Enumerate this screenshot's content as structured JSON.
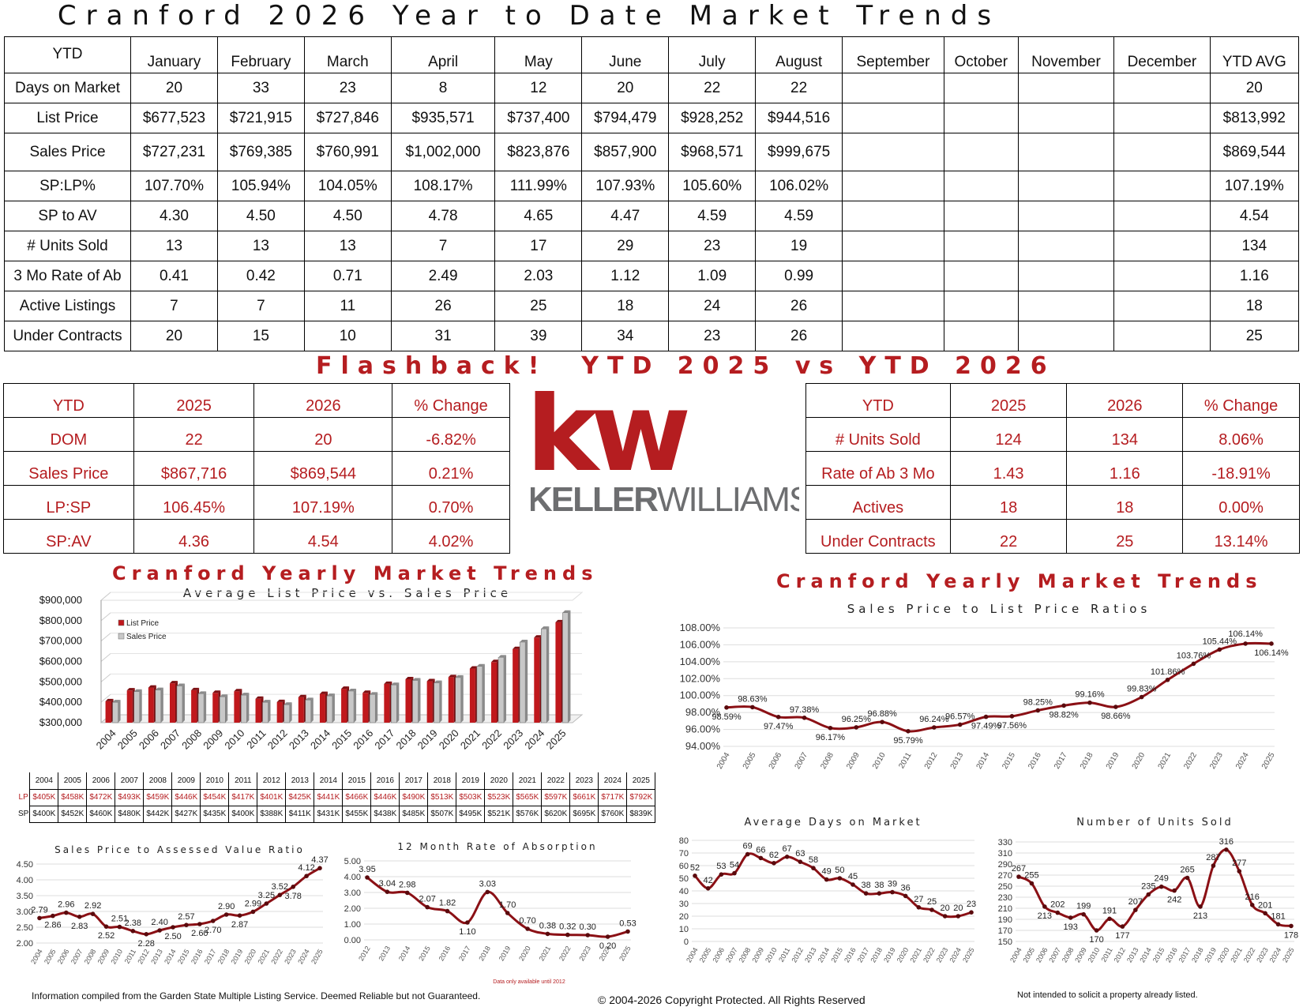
{
  "title": "Cranford 2026 Year to Date Market Trends",
  "main_table": {
    "corner": "YTD",
    "months": [
      "January",
      "February",
      "March",
      "April",
      "May",
      "June",
      "July",
      "August",
      "September",
      "October",
      "November",
      "December",
      "YTD AVG"
    ],
    "rows": [
      {
        "label": "Days on Market",
        "values": [
          "20",
          "33",
          "23",
          "8",
          "12",
          "20",
          "22",
          "22",
          "",
          "",
          "",
          "",
          "20"
        ]
      },
      {
        "label": "List Price",
        "values": [
          "$677,523",
          "$721,915",
          "$727,846",
          "$935,571",
          "$737,400",
          "$794,479",
          "$928,252",
          "$944,516",
          "",
          "",
          "",
          "",
          "$813,992"
        ]
      },
      {
        "label": "Sales Price",
        "values": [
          "$727,231",
          "$769,385",
          "$760,991",
          "$1,002,000",
          "$823,876",
          "$857,900",
          "$968,571",
          "$999,675",
          "",
          "",
          "",
          "",
          "$869,544"
        ]
      },
      {
        "label": "SP:LP%",
        "values": [
          "107.70%",
          "105.94%",
          "104.05%",
          "108.17%",
          "111.99%",
          "107.93%",
          "105.60%",
          "106.02%",
          "",
          "",
          "",
          "",
          "107.19%"
        ]
      },
      {
        "label": "SP to AV",
        "values": [
          "4.30",
          "4.50",
          "4.50",
          "4.78",
          "4.65",
          "4.47",
          "4.59",
          "4.59",
          "",
          "",
          "",
          "",
          "4.54"
        ]
      },
      {
        "label": "# Units Sold",
        "values": [
          "13",
          "13",
          "13",
          "7",
          "17",
          "29",
          "23",
          "19",
          "",
          "",
          "",
          "",
          "134"
        ]
      },
      {
        "label": "3 Mo Rate of Ab",
        "values": [
          "0.41",
          "0.42",
          "0.71",
          "2.49",
          "2.03",
          "1.12",
          "1.09",
          "0.99",
          "",
          "",
          "",
          "",
          "1.16"
        ]
      },
      {
        "label": "Active Listings",
        "values": [
          "7",
          "7",
          "11",
          "26",
          "25",
          "18",
          "24",
          "26",
          "",
          "",
          "",
          "",
          "18"
        ]
      },
      {
        "label": "Under Contracts",
        "values": [
          "20",
          "15",
          "10",
          "31",
          "39",
          "34",
          "23",
          "26",
          "",
          "",
          "",
          "",
          "25"
        ]
      }
    ]
  },
  "flashback_title": "Flashback!  YTD 2025 vs YTD 2026",
  "compare_left": {
    "header": [
      "YTD",
      "2025",
      "2026",
      "% Change"
    ],
    "rows": [
      [
        "DOM",
        "22",
        "20",
        "-6.82%"
      ],
      [
        "Sales Price",
        "$867,716",
        "$869,544",
        "0.21%"
      ],
      [
        "LP:SP",
        "106.45%",
        "107.19%",
        "0.70%"
      ],
      [
        "SP:AV",
        "4.36",
        "4.54",
        "4.02%"
      ]
    ]
  },
  "compare_right": {
    "header": [
      "YTD",
      "2025",
      "2026",
      "% Change"
    ],
    "rows": [
      [
        "# Units Sold",
        "124",
        "134",
        "8.06%"
      ],
      [
        "Rate of Ab 3 Mo",
        "1.43",
        "1.16",
        "-18.91%"
      ],
      [
        "Actives",
        "18",
        "18",
        "0.00%"
      ],
      [
        "Under Contracts",
        "22",
        "25",
        "13.14%"
      ]
    ]
  },
  "logo": {
    "kw": "kw",
    "name_bold": "KELLER",
    "name_light": "WILLIAMS",
    "mark": "®",
    "colors": {
      "red": "#b51d20",
      "gray": "#6d6e70"
    }
  },
  "section_left_title": "Cranford Yearly Market Trends",
  "section_right_title": "Cranford Yearly Market Trends",
  "lpsp_table": {
    "years": [
      "2004",
      "2005",
      "2006",
      "2007",
      "2008",
      "2009",
      "2010",
      "2011",
      "2012",
      "2013",
      "2014",
      "2015",
      "2016",
      "2017",
      "2018",
      "2019",
      "2020",
      "2021",
      "2022",
      "2023",
      "2024",
      "2025"
    ],
    "lp_label": "LP",
    "sp_label": "SP",
    "lp": [
      "$405K",
      "$458K",
      "$472K",
      "$493K",
      "$459K",
      "$446K",
      "$454K",
      "$417K",
      "$401K",
      "$425K",
      "$441K",
      "$466K",
      "$446K",
      "$490K",
      "$513K",
      "$503K",
      "$523K",
      "$565K",
      "$597K",
      "$661K",
      "$717K",
      "$792K"
    ],
    "sp": [
      "$400K",
      "$452K",
      "$460K",
      "$480K",
      "$442K",
      "$427K",
      "$435K",
      "$400K",
      "$388K",
      "$411K",
      "$431K",
      "$455K",
      "$438K",
      "$485K",
      "$507K",
      "$495K",
      "$521K",
      "$576K",
      "$620K",
      "$695K",
      "$760K",
      "$839K"
    ]
  },
  "footer": {
    "left": "Information compiled from the Garden State Multiple Listing Service.  Deemed Reliable but not Guaranteed.",
    "center": "© 2004-2026 Copyright Protected.  All Rights Reserved",
    "right": "Not intended to solicit a property already listed."
  },
  "chart_data": [
    {
      "type": "bar",
      "title": "Average List Price vs. Sales Price",
      "categories": [
        "2004",
        "2005",
        "2006",
        "2007",
        "2008",
        "2009",
        "2010",
        "2011",
        "2012",
        "2013",
        "2014",
        "2015",
        "2016",
        "2017",
        "2018",
        "2019",
        "2020",
        "2021",
        "2022",
        "2023",
        "2024",
        "2025"
      ],
      "series": [
        {
          "name": "List Price",
          "color": "#c0181c",
          "values": [
            405000,
            458000,
            472000,
            493000,
            459000,
            446000,
            454000,
            417000,
            401000,
            425000,
            441000,
            466000,
            446000,
            490000,
            513000,
            503000,
            523000,
            565000,
            597000,
            661000,
            717000,
            792000
          ]
        },
        {
          "name": "Sales Price",
          "color": "#c8c8c8",
          "values": [
            400000,
            452000,
            460000,
            480000,
            442000,
            427000,
            435000,
            400000,
            388000,
            411000,
            431000,
            455000,
            438000,
            485000,
            507000,
            495000,
            521000,
            576000,
            620000,
            695000,
            760000,
            839000
          ]
        }
      ],
      "yticks": [
        "$300,000",
        "$400,000",
        "$500,000",
        "$600,000",
        "$700,000",
        "$800,000",
        "$900,000"
      ],
      "ylim": [
        300000,
        900000
      ],
      "legend": "top-left"
    },
    {
      "type": "line",
      "title": "Sales Price to List Price Ratios",
      "x": [
        "2004",
        "2005",
        "2006",
        "2007",
        "2008",
        "2009",
        "2010",
        "2011",
        "2012",
        "2013",
        "2014",
        "2015",
        "2016",
        "2017",
        "2018",
        "2019",
        "2020",
        "2021",
        "2022",
        "2023",
        "2024",
        "2025"
      ],
      "values": [
        98.59,
        98.63,
        97.47,
        97.38,
        96.17,
        96.25,
        96.88,
        95.79,
        96.24,
        96.57,
        97.49,
        97.56,
        98.25,
        98.82,
        99.16,
        98.66,
        99.83,
        101.86,
        103.76,
        105.44,
        106.14,
        106.14
      ],
      "labels": [
        "98.59%",
        "98.63%",
        "97.47%",
        "97.38%",
        "96.17%",
        "96.25%",
        "96.88%",
        "95.79%",
        "96.24%",
        "96.57%",
        "97.49%",
        "97.56%",
        "98.25%",
        "98.82%",
        "99.16%",
        "98.66%",
        "99.83%",
        "101.86%",
        "103.76%",
        "105.44%",
        "106.14%",
        "106.14%"
      ],
      "yticks": [
        "94.00%",
        "96.00%",
        "98.00%",
        "100.00%",
        "102.00%",
        "104.00%",
        "106.00%",
        "108.00%"
      ],
      "ylim": [
        94,
        108
      ]
    },
    {
      "type": "line",
      "title": "Sales Price to Assessed Value Ratio",
      "x": [
        "2004",
        "2005",
        "2006",
        "2007",
        "2008",
        "2009",
        "2010",
        "2011",
        "2012",
        "2013",
        "2014",
        "2015",
        "2016",
        "2017",
        "2018",
        "2019",
        "2020",
        "2021",
        "2022",
        "2023",
        "2024",
        "2025"
      ],
      "values": [
        2.79,
        2.86,
        2.96,
        2.83,
        2.92,
        2.52,
        2.51,
        2.38,
        2.28,
        2.4,
        2.5,
        2.57,
        2.6,
        2.7,
        2.9,
        2.87,
        2.99,
        3.25,
        3.52,
        3.78,
        4.12,
        4.37
      ],
      "labels": [
        "2.79",
        "2.86",
        "2.96",
        "2.83",
        "2.92",
        "2.52",
        "2.51",
        "2.38",
        "2.28",
        "2.40",
        "2.50",
        "2.57",
        "2.60",
        "2.70",
        "2.90",
        "2.87",
        "2.99",
        "3.25",
        "3.52",
        "3.78",
        "4.12",
        "4.37"
      ],
      "yticks": [
        "2.00",
        "2.50",
        "3.00",
        "3.50",
        "4.00",
        "4.50"
      ],
      "ylim": [
        2,
        4.5
      ]
    },
    {
      "type": "line",
      "title": "12 Month Rate of Absorption",
      "x": [
        "2012",
        "2013",
        "2014",
        "2015",
        "2016",
        "2017",
        "2018",
        "2019",
        "2020",
        "2021",
        "2022",
        "2023",
        "2024",
        "2025"
      ],
      "values": [
        3.95,
        3.04,
        2.98,
        2.07,
        1.82,
        1.1,
        3.03,
        1.7,
        0.7,
        0.38,
        0.32,
        0.3,
        0.2,
        0.53
      ],
      "labels": [
        "3.95",
        "3.04",
        "2.98",
        "2.07",
        "1.82",
        "1.10",
        "3.03",
        "1.70",
        "0.70",
        "0.38",
        "0.32",
        "0.30",
        "0.20",
        "0.53"
      ],
      "yticks": [
        "0.00",
        "1.00",
        "2.00",
        "3.00",
        "4.00",
        "5.00"
      ],
      "ylim": [
        0,
        5
      ],
      "annotation": "Data only available until 2012"
    },
    {
      "type": "line",
      "title": "Average Days on Market",
      "x": [
        "2004",
        "2005",
        "2006",
        "2007",
        "2008",
        "2009",
        "2010",
        "2011",
        "2012",
        "2013",
        "2014",
        "2015",
        "2016",
        "2017",
        "2018",
        "2019",
        "2020",
        "2021",
        "2022",
        "2023",
        "2024",
        "2025"
      ],
      "values": [
        52,
        42,
        53,
        54,
        69,
        66,
        62,
        67,
        63,
        58,
        49,
        50,
        45,
        38,
        38,
        39,
        36,
        27,
        25,
        20,
        20,
        23
      ],
      "labels": [
        "52",
        "42",
        "53",
        "54",
        "69",
        "66",
        "62",
        "67",
        "63",
        "58",
        "49",
        "50",
        "45",
        "38",
        "38",
        "39",
        "36",
        "27",
        "25",
        "20",
        "20",
        "23"
      ],
      "yticks": [
        "0",
        "10",
        "20",
        "30",
        "40",
        "50",
        "60",
        "70",
        "80"
      ],
      "ylim": [
        0,
        80
      ]
    },
    {
      "type": "line",
      "title": "Number of Units Sold",
      "x": [
        "2004",
        "2005",
        "2006",
        "2007",
        "2008",
        "2009",
        "2010",
        "2011",
        "2012",
        "2013",
        "2014",
        "2015",
        "2016",
        "2017",
        "2018",
        "2019",
        "2020",
        "2021",
        "2022",
        "2023",
        "2024",
        "2025"
      ],
      "values": [
        267,
        255,
        213,
        202,
        193,
        199,
        170,
        191,
        177,
        207,
        235,
        249,
        242,
        265,
        213,
        287,
        316,
        277,
        216,
        201,
        181,
        178
      ],
      "labels": [
        "267",
        "255",
        "213",
        "202",
        "193",
        "199",
        "170",
        "191",
        "177",
        "207",
        "235",
        "249",
        "242",
        "265",
        "213",
        "287",
        "316",
        "277",
        "216",
        "201",
        "181",
        "178"
      ],
      "yticks": [
        "150",
        "170",
        "190",
        "210",
        "230",
        "250",
        "270",
        "290",
        "310",
        "330"
      ],
      "ylim": [
        150,
        330
      ]
    }
  ]
}
